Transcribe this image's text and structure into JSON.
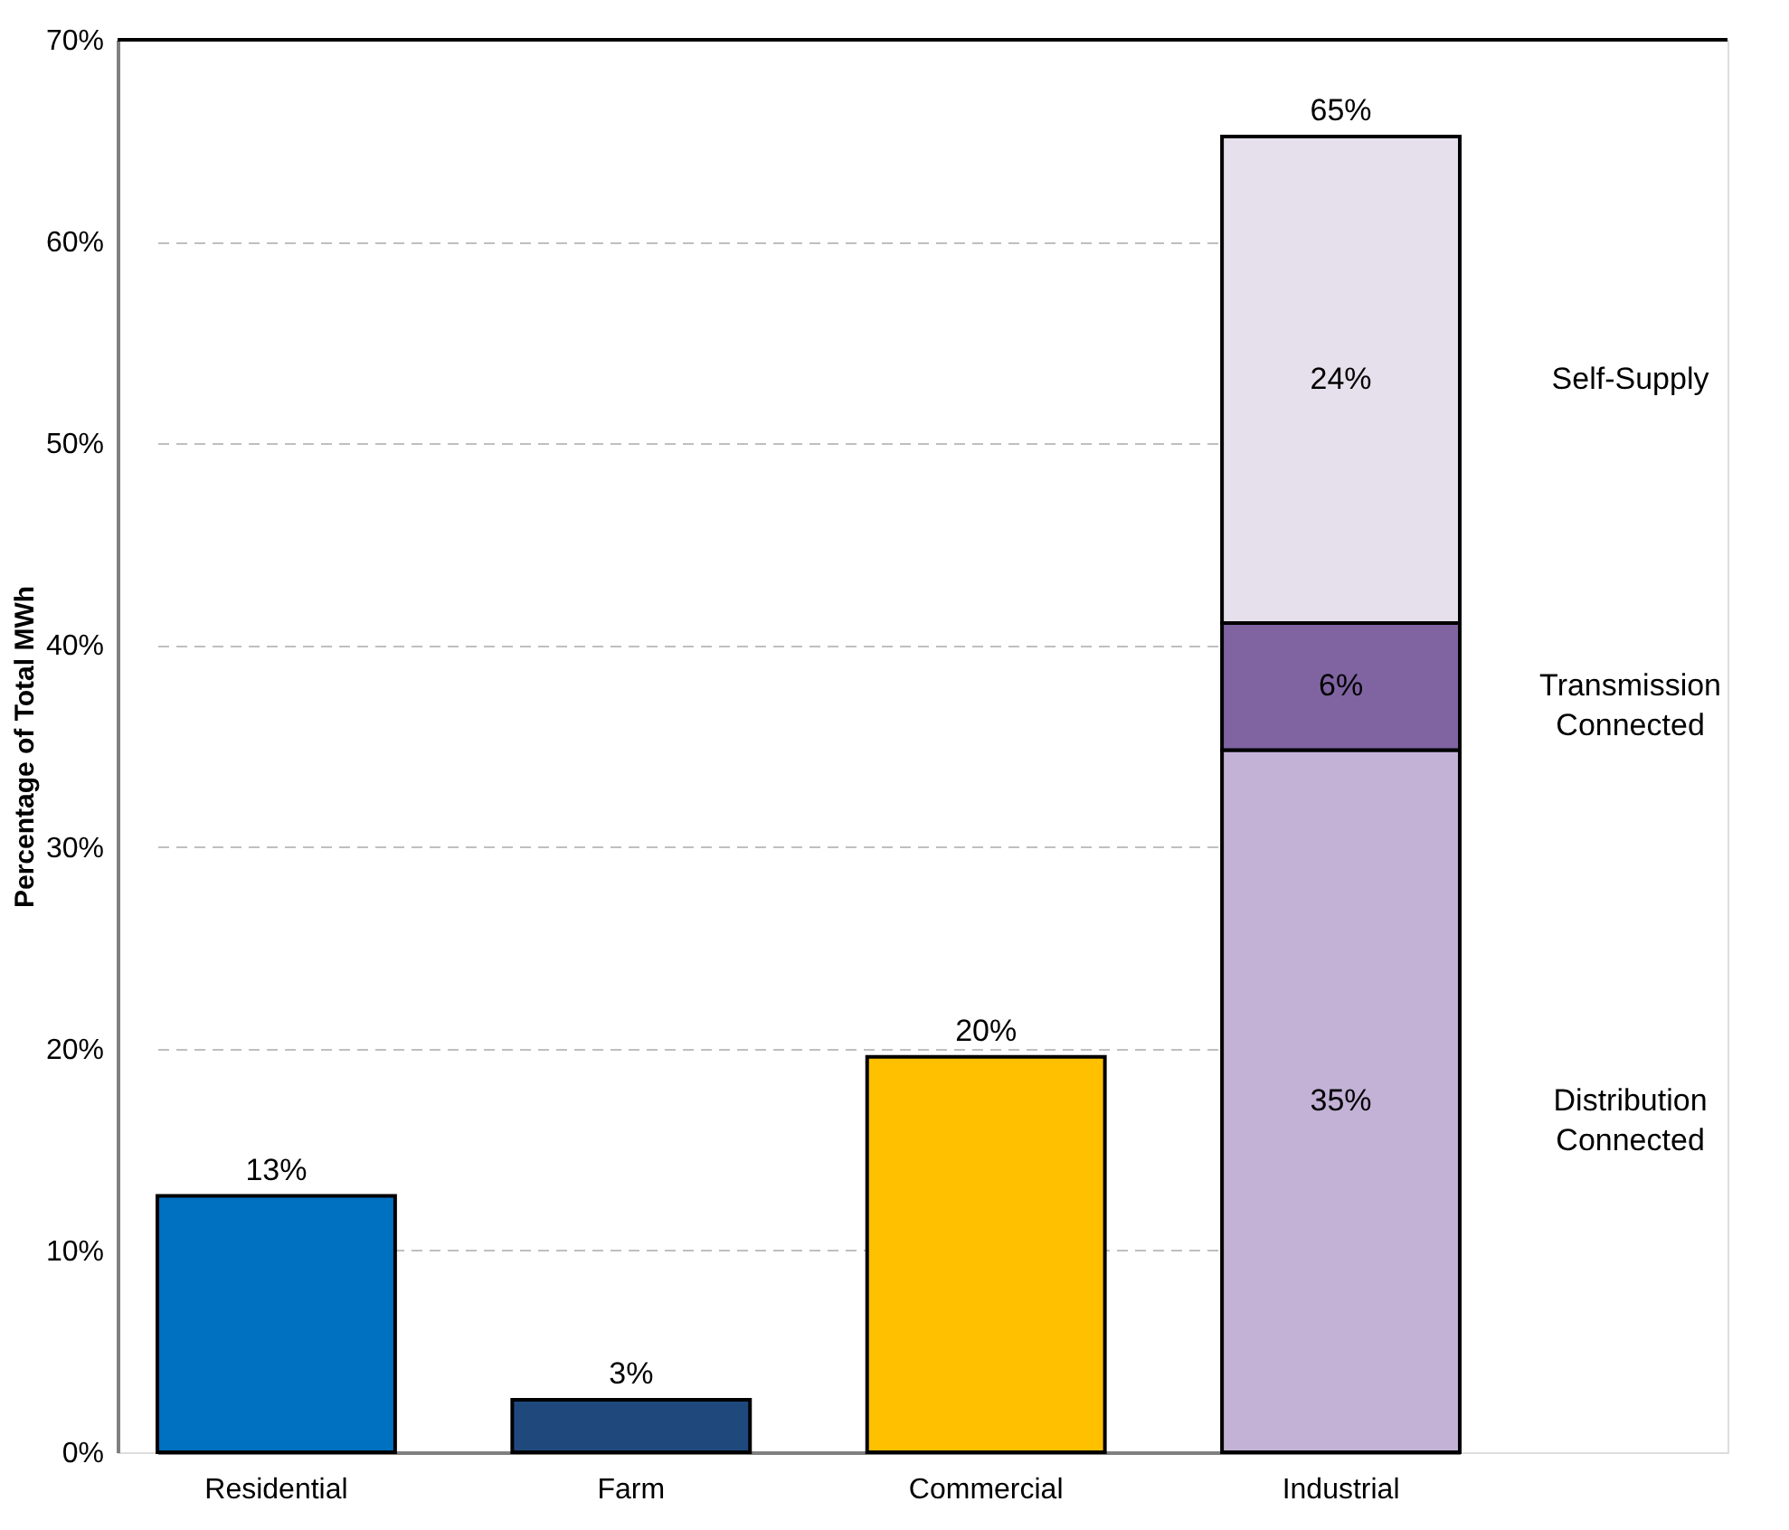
{
  "chart_data": {
    "type": "bar",
    "stacked": true,
    "ylabel": "Percentage of Total MWh",
    "categories": [
      "Residential",
      "Farm",
      "Commercial",
      "Industrial"
    ],
    "series": [
      {
        "name": "Distribution Connected",
        "colors": [
          "#0070c0",
          "#1f497d",
          "#ffc000",
          "#c3b1d6"
        ],
        "values": [
          12.7,
          2.6,
          19.6,
          34.8
        ],
        "value_labels": [
          null,
          null,
          null,
          "35%"
        ]
      },
      {
        "name": "Transmission Connected",
        "color": "#8064a2",
        "values": [
          null,
          null,
          null,
          6.3
        ],
        "value_labels": [
          null,
          null,
          null,
          "6%"
        ]
      },
      {
        "name": "Self-Supply",
        "color": "#e6e0ec",
        "values": [
          null,
          null,
          null,
          24.1
        ],
        "value_labels": [
          null,
          null,
          null,
          "24%"
        ]
      }
    ],
    "totals": [
      "13%",
      "3%",
      "20%",
      "65%"
    ],
    "ylim": [
      0,
      70
    ],
    "yticks": [
      {
        "value": 0,
        "label": "0%"
      },
      {
        "value": 10,
        "label": "10%"
      },
      {
        "value": 20,
        "label": "20%"
      },
      {
        "value": 30,
        "label": "30%"
      },
      {
        "value": 40,
        "label": "40%"
      },
      {
        "value": 50,
        "label": "50%"
      },
      {
        "value": 60,
        "label": "60%"
      },
      {
        "value": 70,
        "label": "70%"
      }
    ],
    "grid": "y",
    "legend": "right"
  }
}
